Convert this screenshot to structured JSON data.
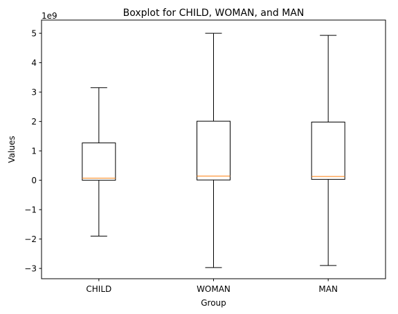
{
  "chart_data": {
    "type": "boxplot",
    "title": "Boxplot for CHILD, WOMAN, and MAN",
    "xlabel": "Group",
    "ylabel": "Values",
    "y_offset_label": "1e9",
    "y_scale": 1000000000,
    "ylim": [
      -3.35,
      5.45
    ],
    "yticks": [
      -3,
      -2,
      -1,
      0,
      1,
      2,
      3,
      4,
      5
    ],
    "ytick_labels": [
      "−3",
      "−2",
      "−1",
      "0",
      "1",
      "2",
      "3",
      "4",
      "5"
    ],
    "categories": [
      "CHILD",
      "WOMAN",
      "MAN"
    ],
    "boxes": [
      {
        "name": "CHILD",
        "whisker_low": -1.9,
        "q1": 0.0,
        "median": 0.07,
        "q3": 1.27,
        "whisker_high": 3.15
      },
      {
        "name": "WOMAN",
        "whisker_low": -2.97,
        "q1": 0.01,
        "median": 0.14,
        "q3": 2.01,
        "whisker_high": 5.0
      },
      {
        "name": "MAN",
        "whisker_low": -2.9,
        "q1": 0.03,
        "median": 0.13,
        "q3": 1.98,
        "whisker_high": 4.93
      }
    ],
    "grid": false,
    "colors": {
      "box": "#000000",
      "median": "#ff7f0e"
    }
  }
}
